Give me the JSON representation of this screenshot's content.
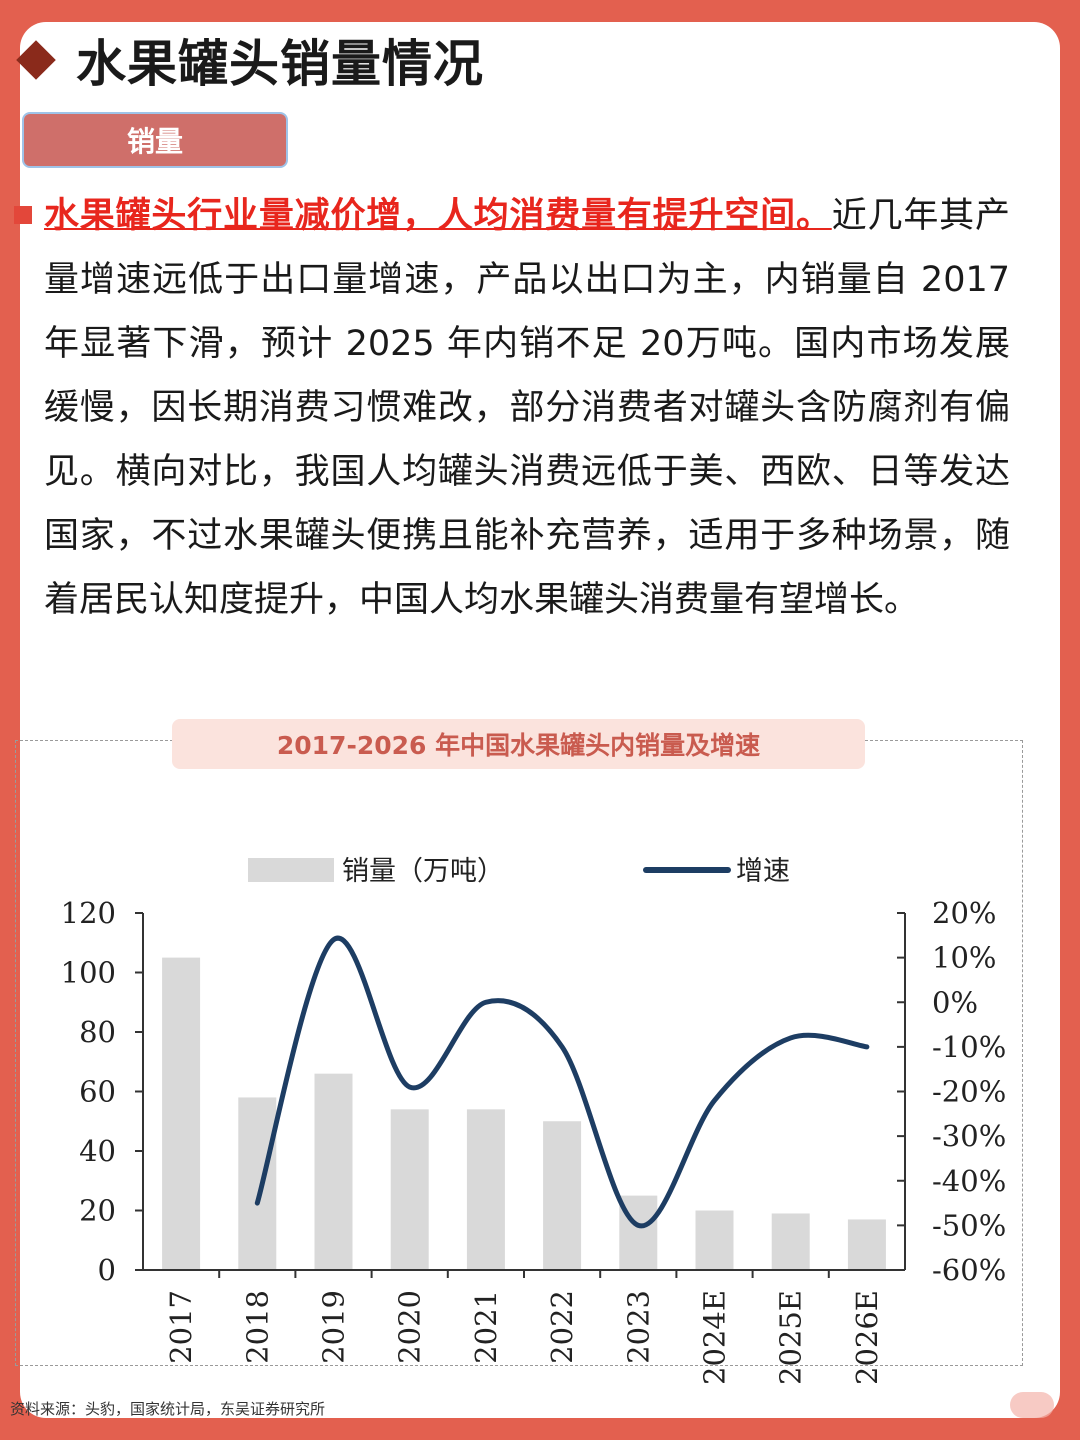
{
  "page": {
    "title": "水果罐头销量情况",
    "section_tab": "销量",
    "highlight": "水果罐头行业量减价增，人均消费量有提升空间。",
    "paragraph": "近几年其产量增速远低于出口量增速，产品以出口为主，内销量自 2017 年显著下滑，预计 2025 年内销不足 20万吨。国内市场发展缓慢，因长期消费习惯难改，部分消费者对罐头含防腐剂有偏见。横向对比，我国人均罐头消费远低于美、西欧、日等发达国家，不过水果罐头便携且能补充营养，适用于多种场景，随着居民认知度提升，中国人均水果罐头消费量有望增长。",
    "source": "资料来源：头豹，国家统计局，东吴证券研究所"
  },
  "colors": {
    "background": "#e3604f",
    "bar": "#d9d9d9",
    "line": "#1d3d63",
    "highlight": "#e8261d"
  },
  "chart_data": {
    "type": "bar",
    "title": "2017-2026 年中国水果罐头内销量及增速",
    "categories": [
      "2017",
      "2018",
      "2019",
      "2020",
      "2021",
      "2022",
      "2023",
      "2024E",
      "2025E",
      "2026E"
    ],
    "series": [
      {
        "name": "销量（万吨）",
        "type": "bar",
        "axis": "left",
        "values": [
          105,
          58,
          66,
          54,
          54,
          50,
          25,
          20,
          19,
          17
        ]
      },
      {
        "name": "增速",
        "type": "line",
        "axis": "right",
        "smooth": true,
        "values": [
          null,
          -45,
          14,
          -19,
          0,
          -10,
          -50,
          -22,
          -8,
          -10
        ]
      }
    ],
    "left_axis": {
      "ticks": [
        "0",
        "20",
        "40",
        "60",
        "80",
        "100",
        "120"
      ],
      "ylim": [
        0,
        120
      ]
    },
    "right_axis": {
      "ticks": [
        "-60%",
        "-50%",
        "-40%",
        "-30%",
        "-20%",
        "-10%",
        "0%",
        "10%",
        "20%"
      ],
      "ylim": [
        -60,
        20
      ]
    },
    "legend": "top"
  }
}
